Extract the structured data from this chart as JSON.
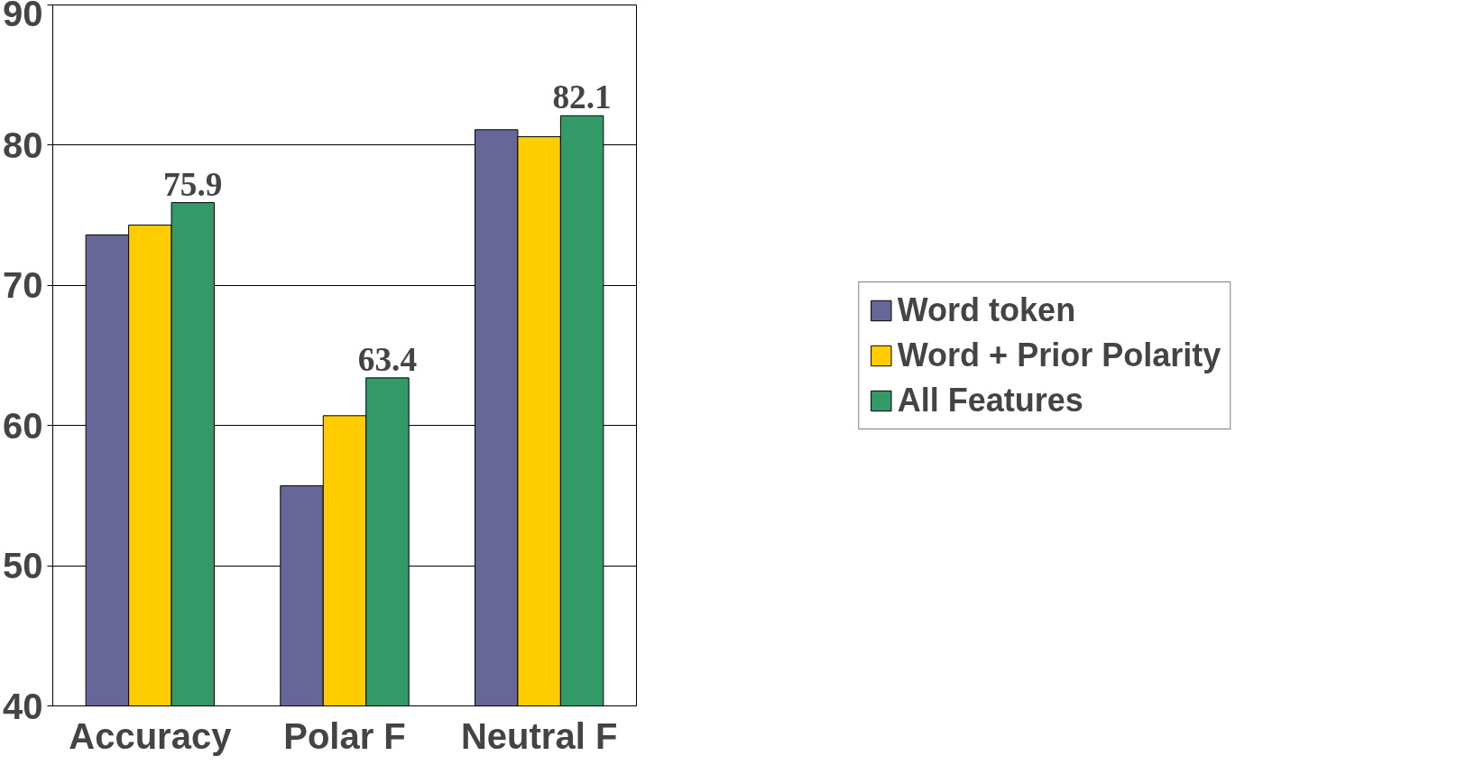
{
  "chart_data": {
    "type": "bar",
    "categories": [
      "Accuracy",
      "Polar F",
      "Neutral F"
    ],
    "series": [
      {
        "name": "Word token",
        "color": "#666699",
        "values": [
          73.6,
          55.7,
          81.1
        ]
      },
      {
        "name": "Word + Prior Polarity",
        "color": "#ffcc00",
        "values": [
          74.3,
          60.7,
          80.6
        ]
      },
      {
        "name": "All Features",
        "color": "#339966",
        "values": [
          75.9,
          63.4,
          82.1
        ],
        "value_labels": [
          "75.9",
          "63.4",
          "82.1"
        ]
      }
    ],
    "ylim": [
      40,
      90
    ],
    "yticks": [
      40,
      50,
      60,
      70,
      80,
      90
    ],
    "grid": "y",
    "legend": "right"
  }
}
